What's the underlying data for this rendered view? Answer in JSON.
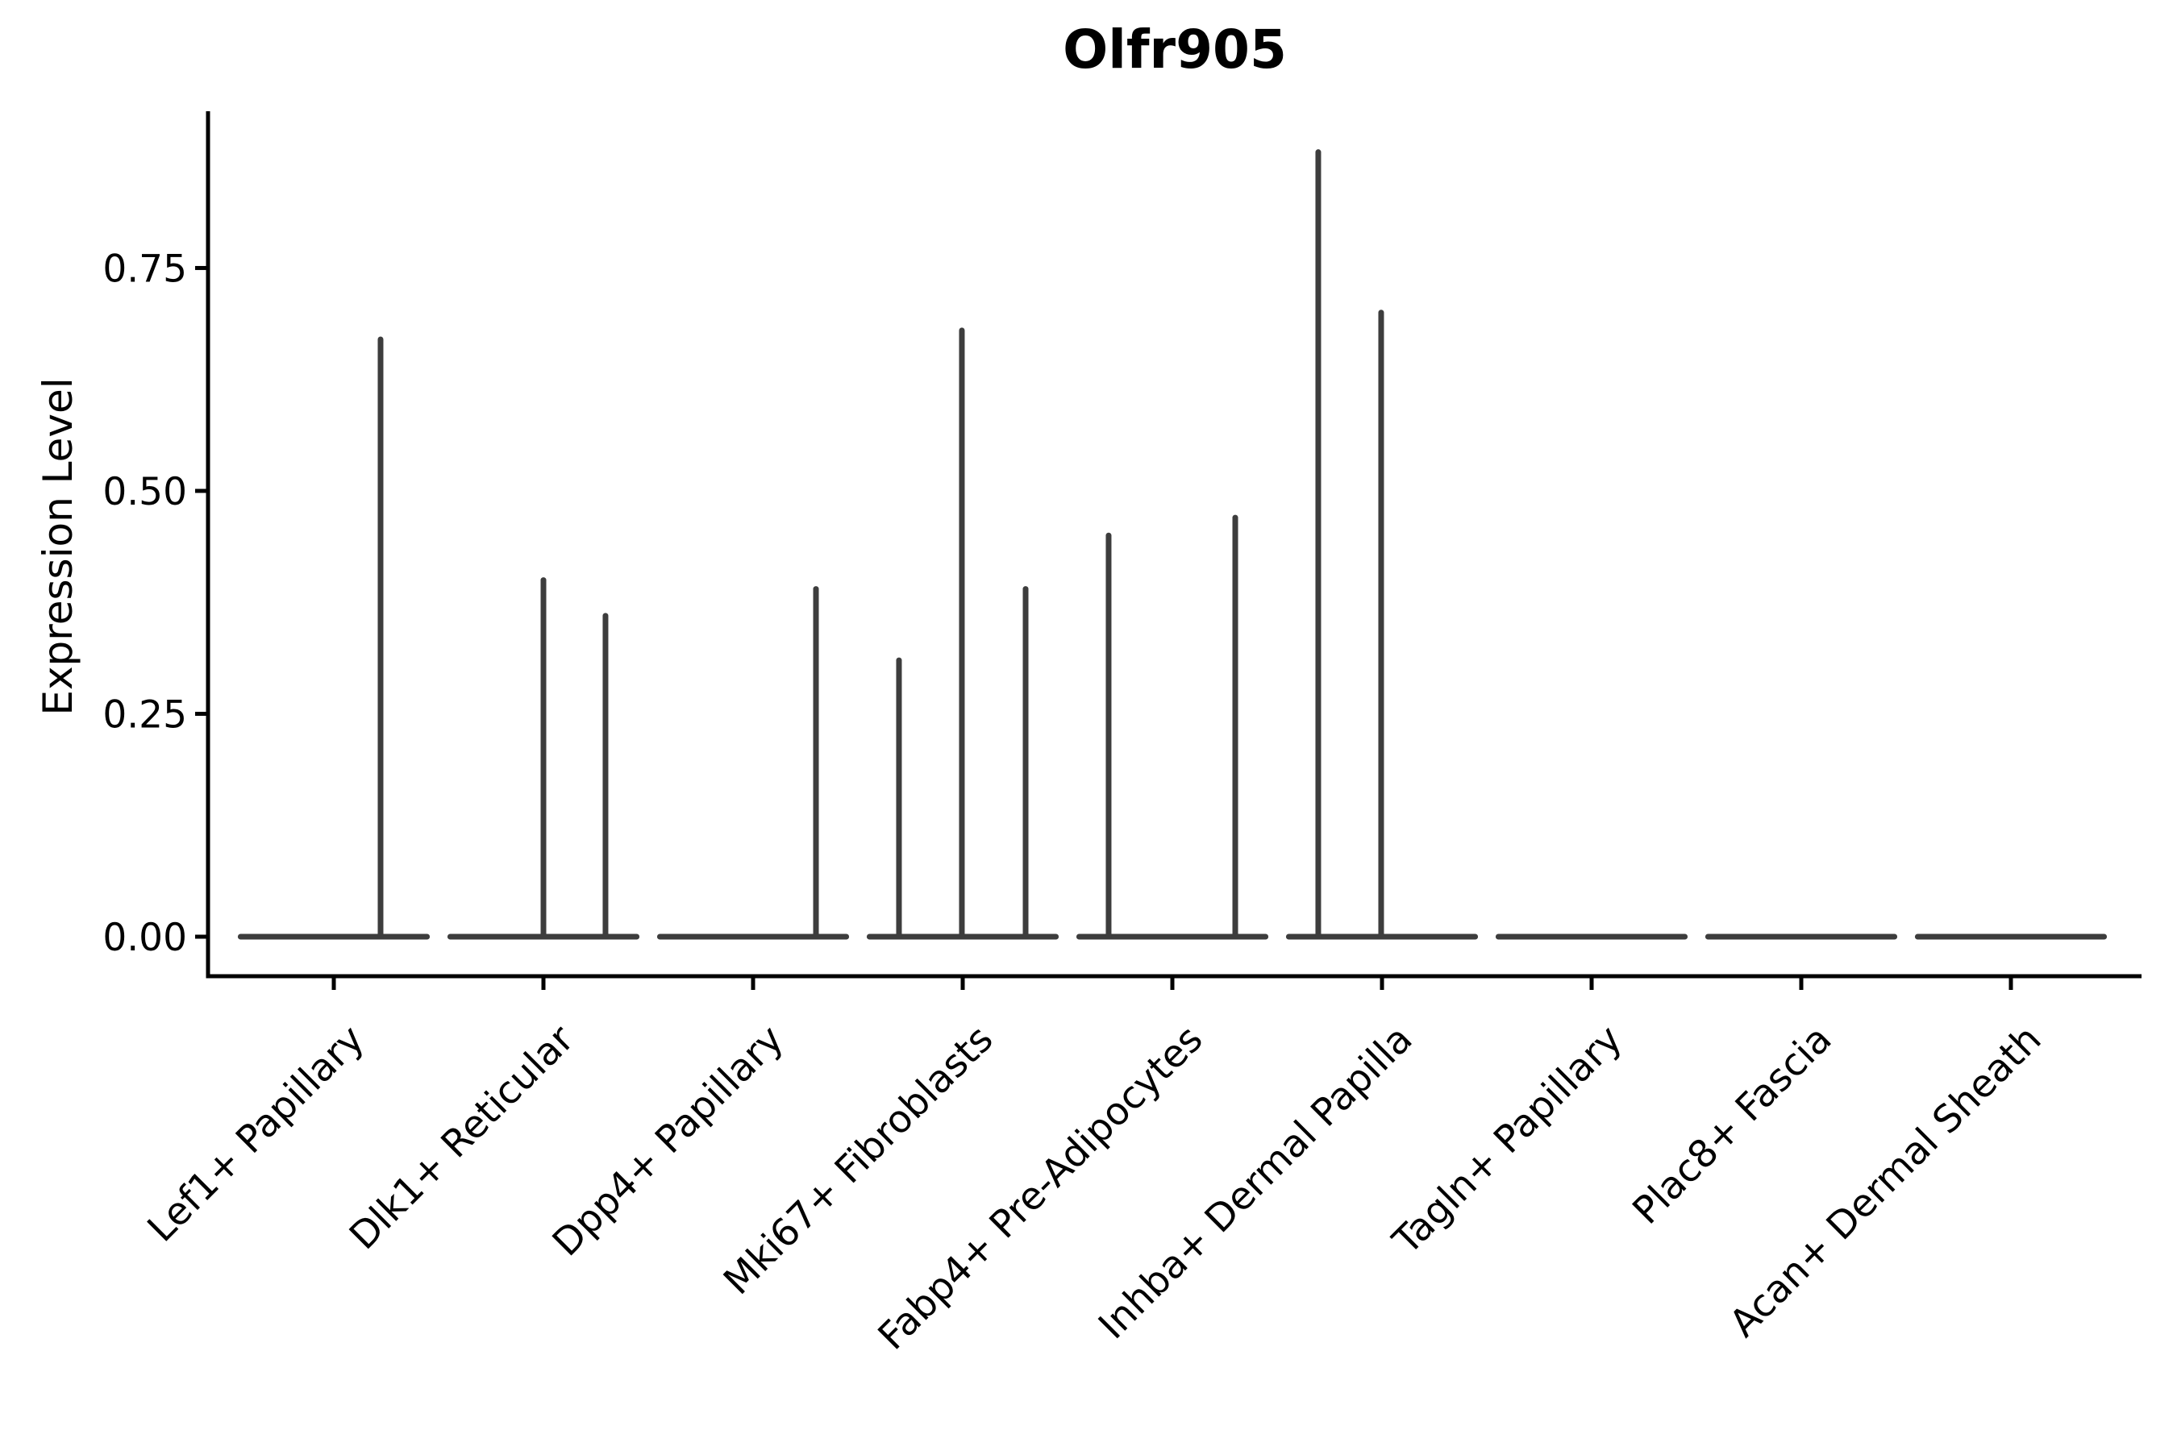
{
  "colors": {
    "background": "#ffffff",
    "axis": "#000000",
    "text": "#000000",
    "violin": "#3d3d3d"
  },
  "chart_data": {
    "type": "violin",
    "title": "Olfr905",
    "xlabel": "",
    "ylabel": "Expression Level",
    "grid": false,
    "legend": false,
    "x_tick_rotation_deg": 45,
    "ylim": [
      -0.044,
      0.924
    ],
    "yticks": [
      {
        "value": 0.0,
        "label": "0.00"
      },
      {
        "value": 0.25,
        "label": "0.25"
      },
      {
        "value": 0.5,
        "label": "0.50"
      },
      {
        "value": 0.75,
        "label": "0.75"
      }
    ],
    "base_halfwidth_frac": 0.458,
    "categories": [
      {
        "label": "Lef1+ Papillary",
        "base_value": 0,
        "spikes": [
          {
            "offset_frac": 0.223,
            "max": 0.67
          }
        ]
      },
      {
        "label": "Dlk1+ Reticular",
        "base_value": 0,
        "spikes": [
          {
            "offset_frac": 0.0,
            "max": 0.4
          },
          {
            "offset_frac": 0.296,
            "max": 0.36
          }
        ]
      },
      {
        "label": "Dpp4+ Papillary",
        "base_value": 0,
        "spikes": [
          {
            "offset_frac": 0.3,
            "max": 0.39
          }
        ]
      },
      {
        "label": "Mki67+ Fibroblasts",
        "base_value": 0,
        "spikes": [
          {
            "offset_frac": -0.304,
            "max": 0.31
          },
          {
            "offset_frac": -0.004,
            "max": 0.68
          },
          {
            "offset_frac": 0.3,
            "max": 0.39
          }
        ]
      },
      {
        "label": "Fabp4+ Pre-Adipocytes",
        "base_value": 0,
        "spikes": [
          {
            "offset_frac": -0.304,
            "max": 0.45
          },
          {
            "offset_frac": 0.3,
            "max": 0.47
          }
        ]
      },
      {
        "label": "Inhba+ Dermal Papilla",
        "base_value": 0,
        "spikes": [
          {
            "offset_frac": -0.304,
            "max": 0.88
          },
          {
            "offset_frac": -0.004,
            "max": 0.7
          }
        ]
      },
      {
        "label": "Tagln+ Papillary",
        "base_value": 0,
        "spikes": []
      },
      {
        "label": "Plac8+ Fascia",
        "base_value": 0,
        "spikes": []
      },
      {
        "label": "Acan+ Dermal Sheath",
        "base_value": 0,
        "spikes": []
      }
    ]
  }
}
